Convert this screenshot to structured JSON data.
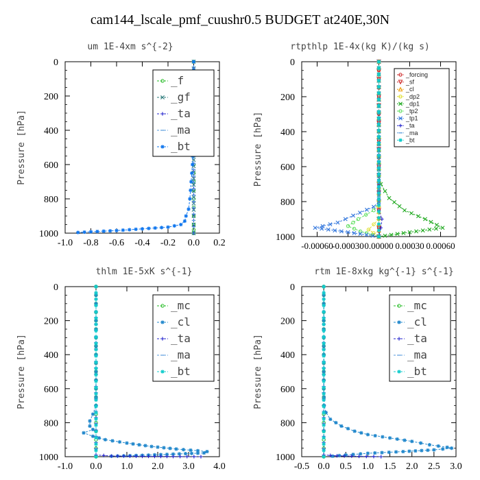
{
  "figure_title": "cam144_lscale_pmf_cuushr0.5  BUDGET at240E,30N",
  "chart_data": [
    {
      "type": "line",
      "title": "um  1E-4xm s^{-2}",
      "ylabel": "Pressure [hPa]",
      "xlabel": "",
      "xlim": [
        -1.0,
        0.2
      ],
      "ylim": [
        1000,
        0
      ],
      "xticks": [
        -1.0,
        -0.8,
        -0.6,
        -0.4,
        -0.2,
        0.0,
        0.2
      ],
      "xticklabels": [
        "-1.0",
        "-0.8",
        "-0.6",
        "-0.4",
        "-0.2",
        "0.0",
        "0.2"
      ],
      "yticks": [
        0,
        200,
        400,
        600,
        800,
        1000
      ],
      "legend_style": "large",
      "series": [
        {
          "name": "_f",
          "color": "#22bb22",
          "marker": "o",
          "points": [
            [
              0,
              0
            ],
            [
              0,
              100
            ],
            [
              0,
              200
            ],
            [
              0,
              300
            ],
            [
              0,
              400
            ],
            [
              0,
              500
            ],
            [
              0,
              600
            ],
            [
              0,
              700
            ],
            [
              0,
              800
            ],
            [
              0,
              900
            ],
            [
              0,
              950
            ],
            [
              0,
              980
            ],
            [
              0,
              1000
            ]
          ]
        },
        {
          "name": "_gf",
          "color": "#2a7a7a",
          "marker": "x",
          "points": [
            [
              0,
              0
            ],
            [
              0,
              500
            ],
            [
              0,
              900
            ],
            [
              0,
              1000
            ]
          ]
        },
        {
          "name": "_ta",
          "color": "#2222cc",
          "marker": "+",
          "points": [
            [
              0,
              0
            ],
            [
              0,
              1000
            ]
          ]
        },
        {
          "name": "_ma",
          "color": "#5599dd",
          "marker": "-",
          "points": [
            [
              0,
              0
            ],
            [
              0,
              1000
            ]
          ]
        },
        {
          "name": "_bt",
          "color": "#1177ee",
          "marker": "*",
          "points": [
            [
              0,
              0
            ],
            [
              0,
              100
            ],
            [
              0,
              200
            ],
            [
              0,
              300
            ],
            [
              -0.005,
              400
            ],
            [
              -0.01,
              500
            ],
            [
              -0.01,
              600
            ],
            [
              -0.02,
              700
            ],
            [
              -0.03,
              800
            ],
            [
              -0.04,
              860
            ],
            [
              -0.06,
              900
            ],
            [
              -0.07,
              930
            ],
            [
              -0.1,
              950
            ],
            [
              -0.2,
              965
            ],
            [
              -0.4,
              975
            ],
            [
              -0.6,
              985
            ],
            [
              -0.8,
              992
            ],
            [
              -0.9,
              996
            ]
          ]
        }
      ]
    },
    {
      "type": "line",
      "title": "rtpthlp  1E-4x(kg K)/(kg s)",
      "ylabel": "Pressure [hPa]",
      "xlabel": "",
      "xlim": [
        -0.00075,
        0.00075
      ],
      "ylim": [
        1000,
        0
      ],
      "xticks": [
        -0.0006,
        -0.0003,
        0.0,
        0.0003,
        0.0006
      ],
      "xticklabels": [
        "-0.00060",
        "-0.00030",
        "0.00000",
        "0.00030",
        "0.00060"
      ],
      "yticks": [
        0,
        200,
        400,
        600,
        800,
        1000
      ],
      "legend_style": "small",
      "series": [
        {
          "name": "_forcing",
          "color": "#cc2222",
          "marker": "o",
          "points": [
            [
              0,
              0
            ],
            [
              0,
              100
            ],
            [
              0,
              200
            ],
            [
              0,
              300
            ],
            [
              0,
              400
            ],
            [
              0,
              500
            ],
            [
              0,
              600
            ],
            [
              0,
              700
            ],
            [
              0,
              800
            ],
            [
              0,
              900
            ],
            [
              0,
              1000
            ]
          ]
        },
        {
          "name": "_sf",
          "color": "#cc2222",
          "marker": "v",
          "points": [
            [
              0,
              0
            ],
            [
              0,
              100
            ],
            [
              0,
              200
            ],
            [
              0,
              300
            ],
            [
              0,
              400
            ],
            [
              0,
              500
            ],
            [
              0,
              600
            ],
            [
              0,
              700
            ],
            [
              0,
              800
            ],
            [
              0,
              900
            ],
            [
              0,
              1000
            ]
          ]
        },
        {
          "name": "_cl",
          "color": "#ee9900",
          "marker": "^",
          "points": [
            [
              0,
              0
            ],
            [
              0,
              1000
            ]
          ]
        },
        {
          "name": "_dp2",
          "color": "#dddd22",
          "marker": "o",
          "points": [
            [
              0,
              0
            ],
            [
              0,
              900
            ],
            [
              -0.0001,
              960
            ],
            [
              0,
              1000
            ]
          ]
        },
        {
          "name": "_dp1",
          "color": "#22aa22",
          "marker": "x",
          "points": [
            [
              0,
              0
            ],
            [
              0,
              650
            ],
            [
              2e-05,
              700
            ],
            [
              0.0001,
              780
            ],
            [
              0.00025,
              850
            ],
            [
              0.00045,
              900
            ],
            [
              0.00062,
              950
            ],
            [
              0.0003,
              975
            ],
            [
              0,
              1000
            ]
          ]
        },
        {
          "name": "_tp2",
          "color": "#55dd55",
          "marker": "o",
          "points": [
            [
              0,
              0
            ],
            [
              0,
              800
            ],
            [
              -5e-05,
              850
            ],
            [
              -0.0002,
              900
            ],
            [
              -0.0003,
              940
            ],
            [
              -0.00018,
              970
            ],
            [
              0,
              1000
            ]
          ]
        },
        {
          "name": "_tp1",
          "color": "#3377dd",
          "marker": "x",
          "points": [
            [
              0,
              0
            ],
            [
              0,
              800
            ],
            [
              -5e-05,
              830
            ],
            [
              -0.00025,
              880
            ],
            [
              -0.0004,
              920
            ],
            [
              -0.00062,
              950
            ],
            [
              -0.0003,
              975
            ],
            [
              0,
              1000
            ]
          ]
        },
        {
          "name": "_ta",
          "color": "#2222cc",
          "marker": "+",
          "points": [
            [
              0,
              0
            ],
            [
              0,
              850
            ],
            [
              3e-05,
              900
            ],
            [
              2e-05,
              950
            ],
            [
              0,
              1000
            ]
          ]
        },
        {
          "name": "_ma",
          "color": "#5599dd",
          "marker": "-",
          "points": [
            [
              0,
              0
            ],
            [
              0,
              1000
            ]
          ]
        },
        {
          "name": "_bt",
          "color": "#11cccc",
          "marker": "*",
          "points": [
            [
              0,
              0
            ],
            [
              0,
              1000
            ]
          ]
        }
      ]
    },
    {
      "type": "line",
      "title": "thlm  1E-5xK s^{-1}",
      "ylabel": "Pressure [hPa]",
      "xlabel": "",
      "xlim": [
        -1.0,
        4.0
      ],
      "ylim": [
        1000,
        0
      ],
      "xticks": [
        -1.0,
        0.0,
        1.0,
        2.0,
        3.0,
        4.0
      ],
      "xticklabels": [
        "-1.0",
        "0.0",
        "1.0",
        "2.0",
        "3.0",
        "4.0"
      ],
      "yticks": [
        0,
        200,
        400,
        600,
        800,
        1000
      ],
      "legend_style": "large",
      "series": [
        {
          "name": "_mc",
          "color": "#22bb22",
          "marker": "o",
          "points": [
            [
              0,
              0
            ],
            [
              0,
              100
            ],
            [
              0,
              200
            ],
            [
              0,
              300
            ],
            [
              0,
              400
            ],
            [
              0,
              500
            ],
            [
              0,
              600
            ],
            [
              0,
              700
            ],
            [
              0,
              800
            ],
            [
              0,
              900
            ],
            [
              0,
              1000
            ]
          ]
        },
        {
          "name": "_cl",
          "color": "#2288cc",
          "marker": "*",
          "points": [
            [
              0,
              0
            ],
            [
              0,
              100
            ],
            [
              0,
              200
            ],
            [
              0,
              300
            ],
            [
              0,
              400
            ],
            [
              0,
              500
            ],
            [
              0,
              600
            ],
            [
              0,
              700
            ],
            [
              -0.1,
              750
            ],
            [
              -0.2,
              790
            ],
            [
              -0.2,
              820
            ],
            [
              -0.1,
              840
            ],
            [
              -0.4,
              860
            ],
            [
              -0.1,
              880
            ],
            [
              0.3,
              900
            ],
            [
              1.0,
              920
            ],
            [
              1.8,
              940
            ],
            [
              2.6,
              955
            ],
            [
              3.3,
              965
            ],
            [
              3.6,
              970
            ],
            [
              3.5,
              978
            ],
            [
              2.5,
              985
            ],
            [
              1.5,
              992
            ],
            [
              0.5,
              997
            ]
          ]
        },
        {
          "name": "_ta",
          "color": "#2222cc",
          "marker": "+",
          "points": [
            [
              0,
              0
            ],
            [
              0,
              990
            ],
            [
              0.5,
              996
            ],
            [
              1.5,
              998
            ],
            [
              2.5,
              999
            ],
            [
              3.4,
              1000
            ]
          ]
        },
        {
          "name": "_ma",
          "color": "#5599dd",
          "marker": "-",
          "points": [
            [
              0,
              0
            ],
            [
              0,
              1000
            ]
          ]
        },
        {
          "name": "_bt",
          "color": "#11cccc",
          "marker": "*",
          "points": [
            [
              0,
              0
            ],
            [
              0,
              1000
            ]
          ]
        }
      ]
    },
    {
      "type": "line",
      "title": "rtm  1E-8xkg kg^{-1} s^{-1}",
      "ylabel": "Pressure [hPa]",
      "xlabel": "",
      "xlim": [
        -0.5,
        3.0
      ],
      "ylim": [
        1000,
        0
      ],
      "xticks": [
        -0.5,
        0.0,
        0.5,
        1.0,
        1.5,
        2.0,
        2.5,
        3.0
      ],
      "xticklabels": [
        "-0.5",
        "0.0",
        "0.5",
        "1.0",
        "1.5",
        "2.0",
        "2.5",
        "3.0"
      ],
      "yticks": [
        0,
        200,
        400,
        600,
        800,
        1000
      ],
      "legend_style": "large",
      "series": [
        {
          "name": "_mc",
          "color": "#22bb22",
          "marker": "o",
          "points": [
            [
              0,
              0
            ],
            [
              0,
              100
            ],
            [
              0,
              200
            ],
            [
              0,
              300
            ],
            [
              0,
              400
            ],
            [
              0,
              500
            ],
            [
              0,
              600
            ],
            [
              0,
              700
            ],
            [
              0,
              800
            ],
            [
              0,
              900
            ],
            [
              0,
              1000
            ]
          ]
        },
        {
          "name": "_cl",
          "color": "#2288cc",
          "marker": "*",
          "points": [
            [
              0,
              0
            ],
            [
              0,
              100
            ],
            [
              0,
              200
            ],
            [
              0,
              300
            ],
            [
              0,
              400
            ],
            [
              0,
              500
            ],
            [
              0,
              600
            ],
            [
              0.01,
              700
            ],
            [
              0.05,
              740
            ],
            [
              0.15,
              780
            ],
            [
              0.4,
              820
            ],
            [
              0.7,
              850
            ],
            [
              1.0,
              870
            ],
            [
              1.5,
              890
            ],
            [
              2.0,
              910
            ],
            [
              2.4,
              930
            ],
            [
              2.8,
              945
            ],
            [
              2.9,
              950
            ],
            [
              2.5,
              960
            ],
            [
              1.8,
              970
            ],
            [
              1.0,
              980
            ],
            [
              0.5,
              990
            ],
            [
              0.2,
              997
            ]
          ]
        },
        {
          "name": "_ta",
          "color": "#2222cc",
          "marker": "+",
          "points": [
            [
              0,
              0
            ],
            [
              0,
              990
            ],
            [
              0.3,
              995
            ],
            [
              0.8,
              998
            ],
            [
              1.3,
              1000
            ]
          ]
        },
        {
          "name": "_ma",
          "color": "#5599dd",
          "marker": "-",
          "points": [
            [
              0,
              0
            ],
            [
              0,
              1000
            ]
          ]
        },
        {
          "name": "_bt",
          "color": "#11cccc",
          "marker": "*",
          "points": [
            [
              0,
              0
            ],
            [
              0,
              1000
            ]
          ]
        }
      ]
    }
  ]
}
